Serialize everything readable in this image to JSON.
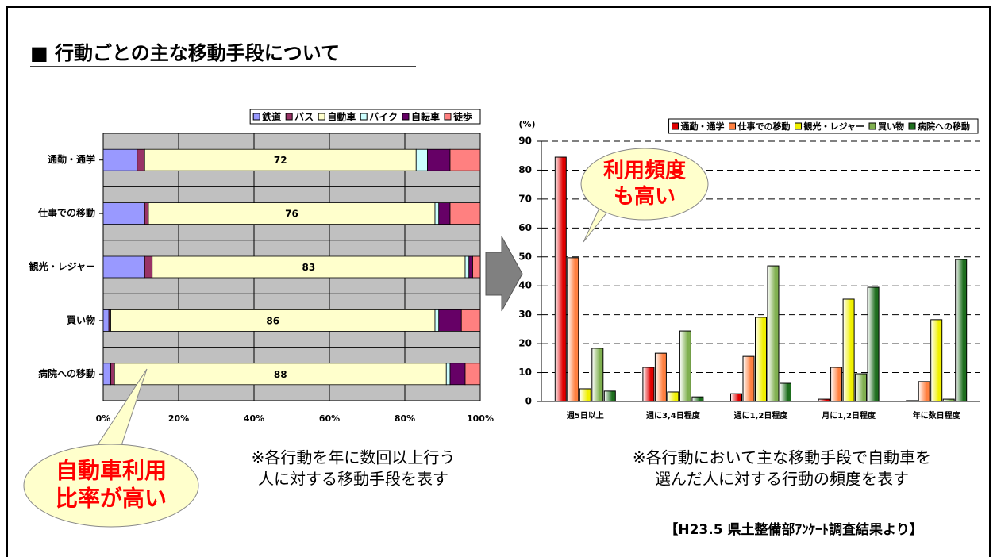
{
  "title": "■ 行動ごとの主な移動手段について",
  "source": "【H23.5 県土整備部ｱﾝｹｰﾄ調査結果より】",
  "chart_data": [
    {
      "type": "hstack",
      "categories": [
        "通勤・通学",
        "仕事での移動",
        "観光・レジャー",
        "買い物",
        "病院への移動"
      ],
      "series": [
        {
          "name": "鉄道",
          "color": "#9999ff",
          "values": [
            9,
            11,
            11,
            1.5,
            2
          ]
        },
        {
          "name": "バス",
          "color": "#993366",
          "values": [
            2,
            1,
            2,
            0.5,
            1
          ]
        },
        {
          "name": "自動車",
          "color": "#ffffcc",
          "values": [
            72,
            76,
            83,
            86,
            88
          ],
          "labels": true
        },
        {
          "name": "バイク",
          "color": "#ccffff",
          "values": [
            3,
            1,
            1,
            1,
            1
          ]
        },
        {
          "name": "自転車",
          "color": "#660066",
          "values": [
            6,
            3,
            1,
            6,
            4
          ]
        },
        {
          "name": "徒歩",
          "color": "#ff8080",
          "values": [
            8,
            8,
            2,
            5,
            4
          ]
        }
      ],
      "xlim": [
        0,
        100
      ],
      "xticks": [
        {
          "value": 0,
          "label": "0%"
        },
        {
          "value": 20,
          "label": "20%"
        },
        {
          "value": 40,
          "label": "40%"
        },
        {
          "value": 60,
          "label": "60%"
        },
        {
          "value": 80,
          "label": "80%"
        },
        {
          "value": 100,
          "label": "100%"
        }
      ],
      "grid": true,
      "legend": "top-right",
      "callout": [
        "自動車利用",
        "比率が高い"
      ],
      "note": [
        "※各行動を年に数回以上行う",
        "人に対する移動手段を表す"
      ]
    },
    {
      "type": "bar",
      "ylabel": "(%)",
      "categories": [
        "週5日以上",
        "週に3,4日程度",
        "週に1,2日程度",
        "月に1,2日程度",
        "年に数日程度"
      ],
      "series": [
        {
          "name": "通勤・通学",
          "color": "#e00000",
          "values": [
            84.5,
            11.8,
            2.7,
            0.8,
            0.3
          ]
        },
        {
          "name": "仕事での移動",
          "color": "#ff8040",
          "values": [
            49.7,
            16.7,
            15.6,
            11.8,
            6.9
          ]
        },
        {
          "name": "観光・レジャー",
          "color": "#f0f000",
          "values": [
            4.4,
            3.3,
            29.1,
            35.4,
            28.3
          ]
        },
        {
          "name": "買い物",
          "color": "#80b050",
          "values": [
            18.4,
            24.4,
            46.9,
            9.6,
            0.8
          ]
        },
        {
          "name": "病院への移動",
          "color": "#1e6e1e",
          "values": [
            3.6,
            1.6,
            6.3,
            39.5,
            49.1
          ]
        }
      ],
      "ylim": [
        0,
        90
      ],
      "yticks": [
        0,
        10,
        20,
        30,
        40,
        50,
        60,
        70,
        80,
        90
      ],
      "grid": true,
      "legend": "top-right",
      "callout": [
        "利用頻度",
        "も高い"
      ],
      "note": [
        "※各行動において主な移動手段で自動車を",
        "選んだ人に対する行動の頻度を表す"
      ]
    }
  ]
}
